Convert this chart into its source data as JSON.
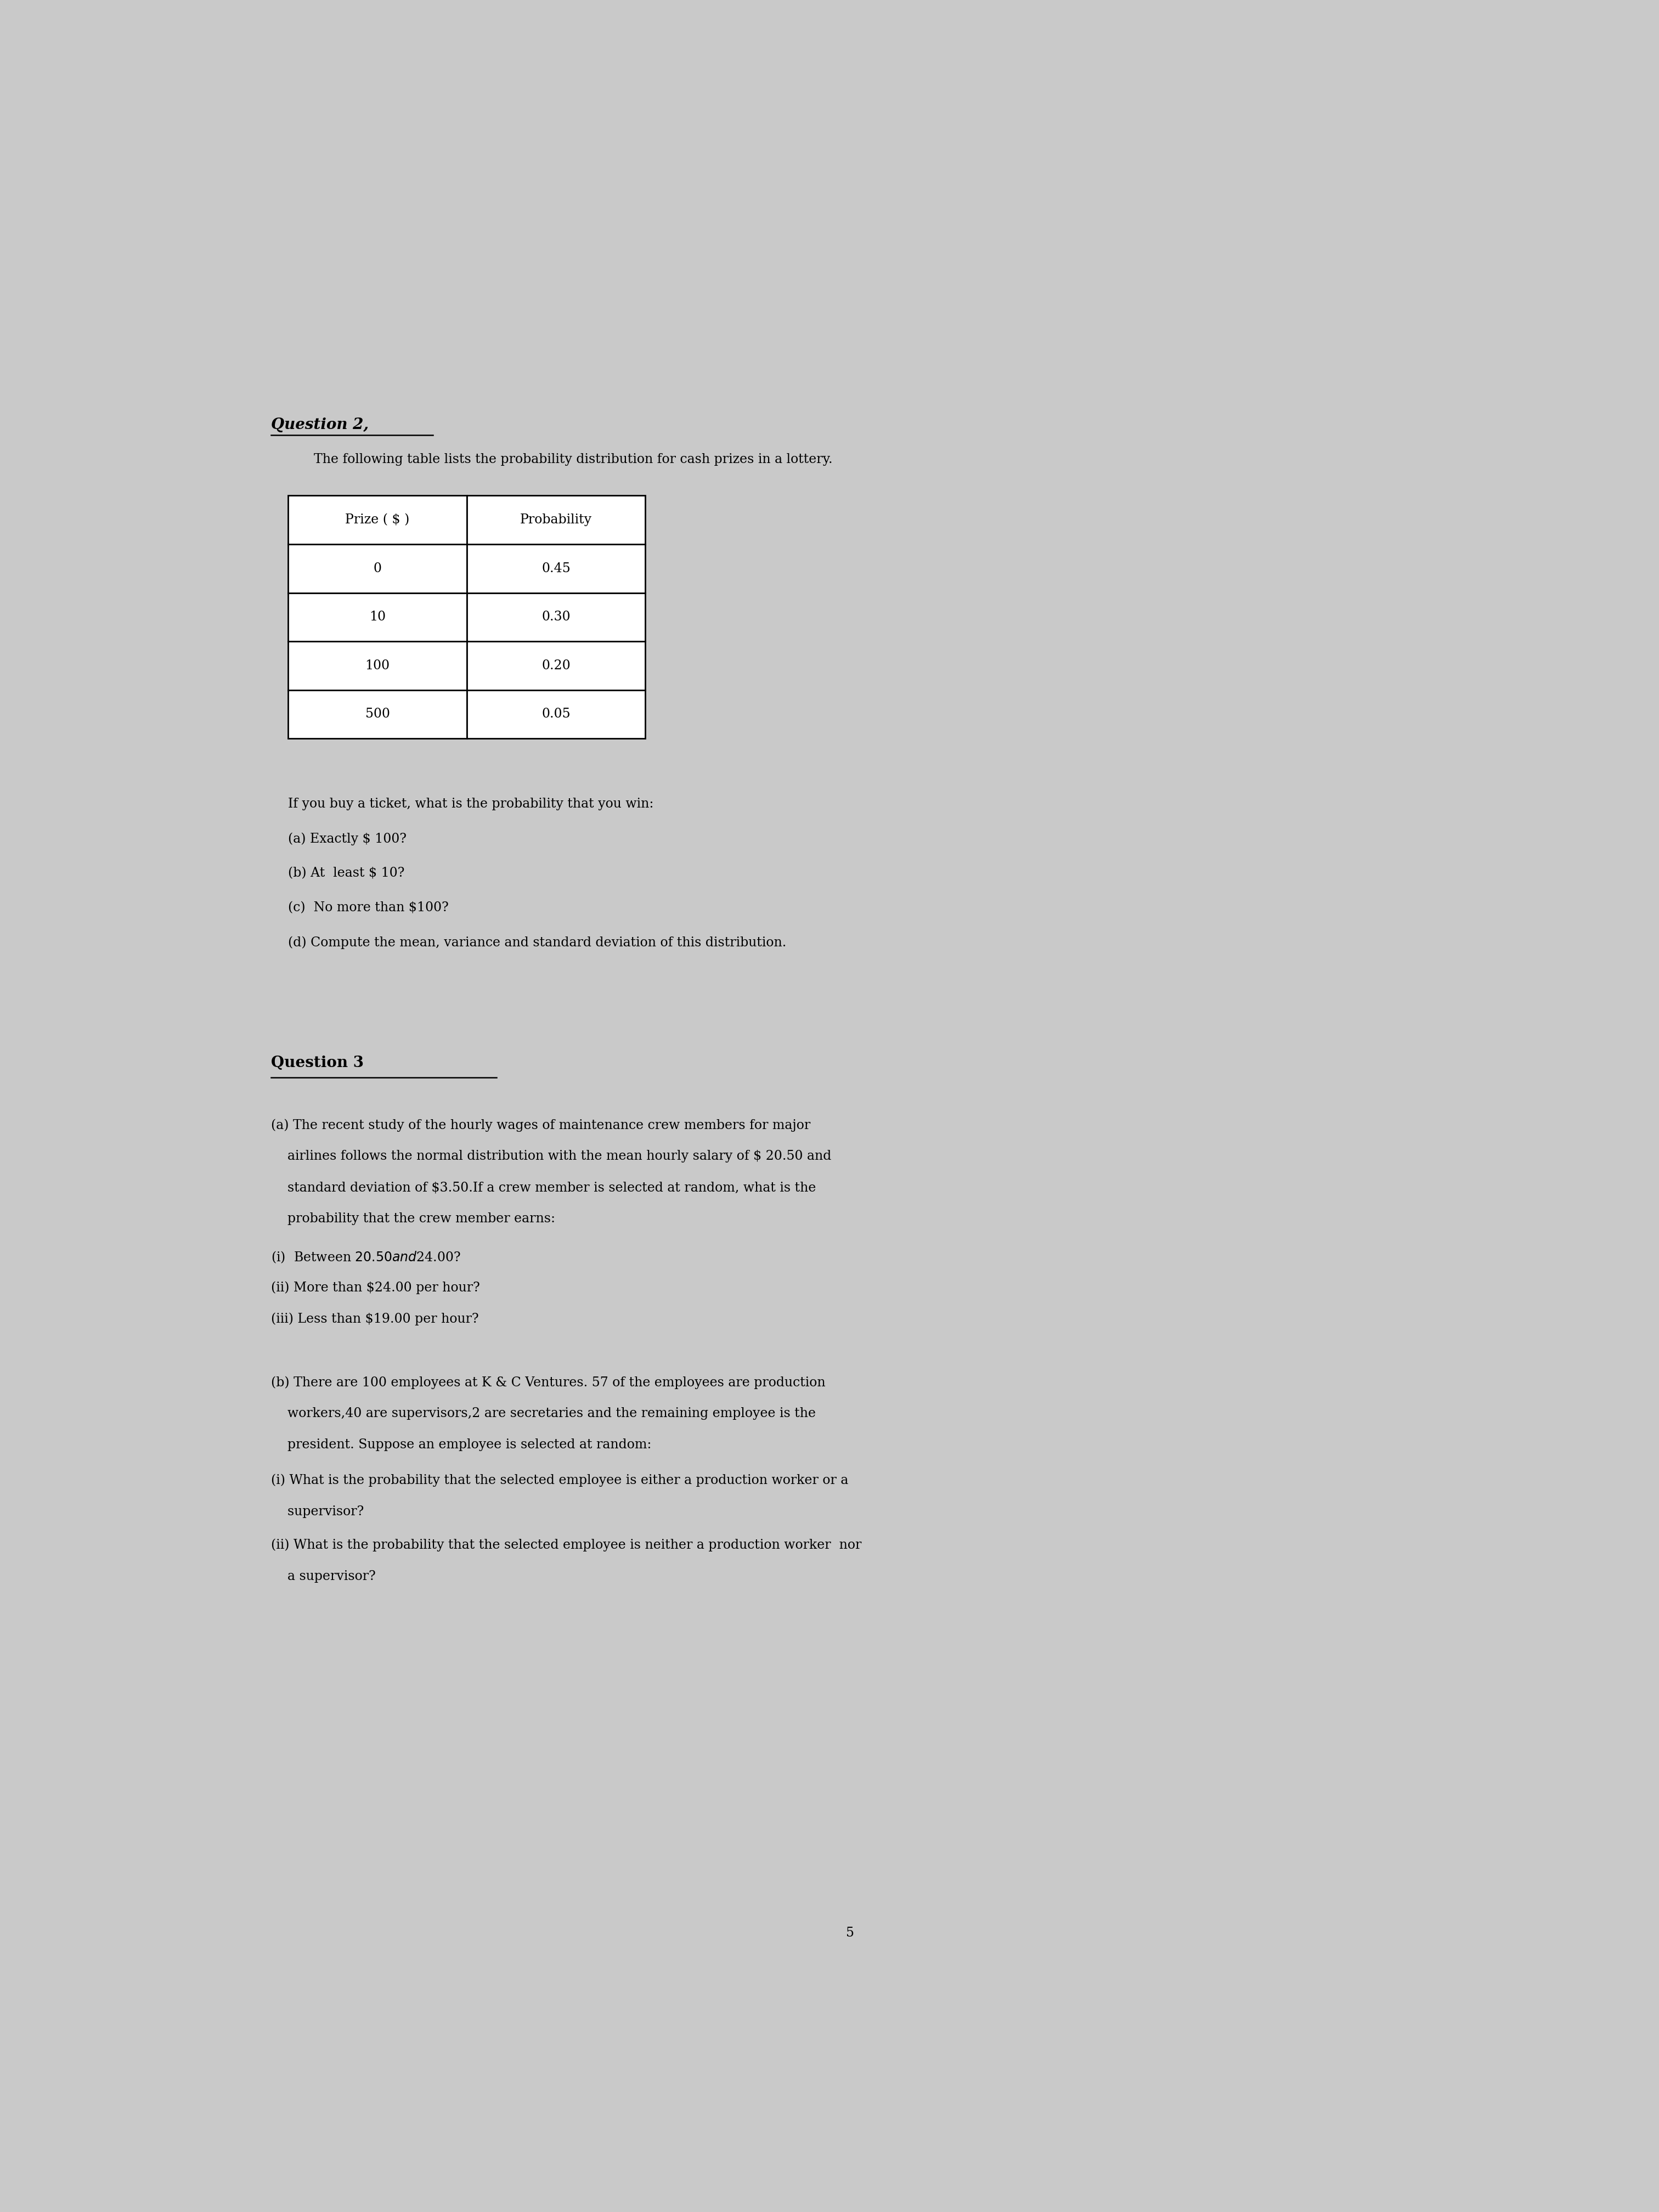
{
  "bg_color": "#c9c9c9",
  "question2_title": "Question 2,",
  "question2_intro": "The following table lists the probability distribution for cash prizes in a lottery.",
  "table_headers": [
    "Prize ( $ )",
    "Probability"
  ],
  "table_prizes": [
    "0",
    "10",
    "100",
    "500"
  ],
  "table_probs": [
    "0.45",
    "0.30",
    "0.20",
    "0.05"
  ],
  "q2_followup": "If you buy a ticket, what is the probability that you win:",
  "q2_a": "(a) Exactly $ 100?",
  "q2_b": "(b) At  least $ 10?",
  "q2_c": "(c)  No more than $100?",
  "q2_d": "(d) Compute the mean, variance and standard deviation of this distribution.",
  "question3_title": "Question 3",
  "q3a_lines": [
    "(a) The recent study of the hourly wages of maintenance crew members for major",
    "    airlines follows the normal distribution with the mean hourly salary of $ 20.50 and",
    "    standard deviation of $3.50.If a crew member is selected at random, what is the",
    "    probability that the crew member earns:"
  ],
  "q3_i": "(i)  Between $20.50 and $24.00?",
  "q3_ii": "(ii) More than $24.00 per hour?",
  "q3_iii": "(iii) Less than $19.00 per hour?",
  "q3b_lines": [
    "(b) There are 100 employees at K & C Ventures. 57 of the employees are production",
    "    workers,40 are supervisors,2 are secretaries and the remaining employee is the",
    "    president. Suppose an employee is selected at random:"
  ],
  "q3bi_lines": [
    "(i) What is the probability that the selected employee is either a production worker or a",
    "    supervisor?"
  ],
  "q3bii_lines": [
    "(ii) What is the probability that the selected employee is neither a production worker  nor",
    "    a supervisor?"
  ],
  "page_number": "5",
  "title_fontsize": 20,
  "body_fontsize": 17,
  "table_fontsize": 17
}
